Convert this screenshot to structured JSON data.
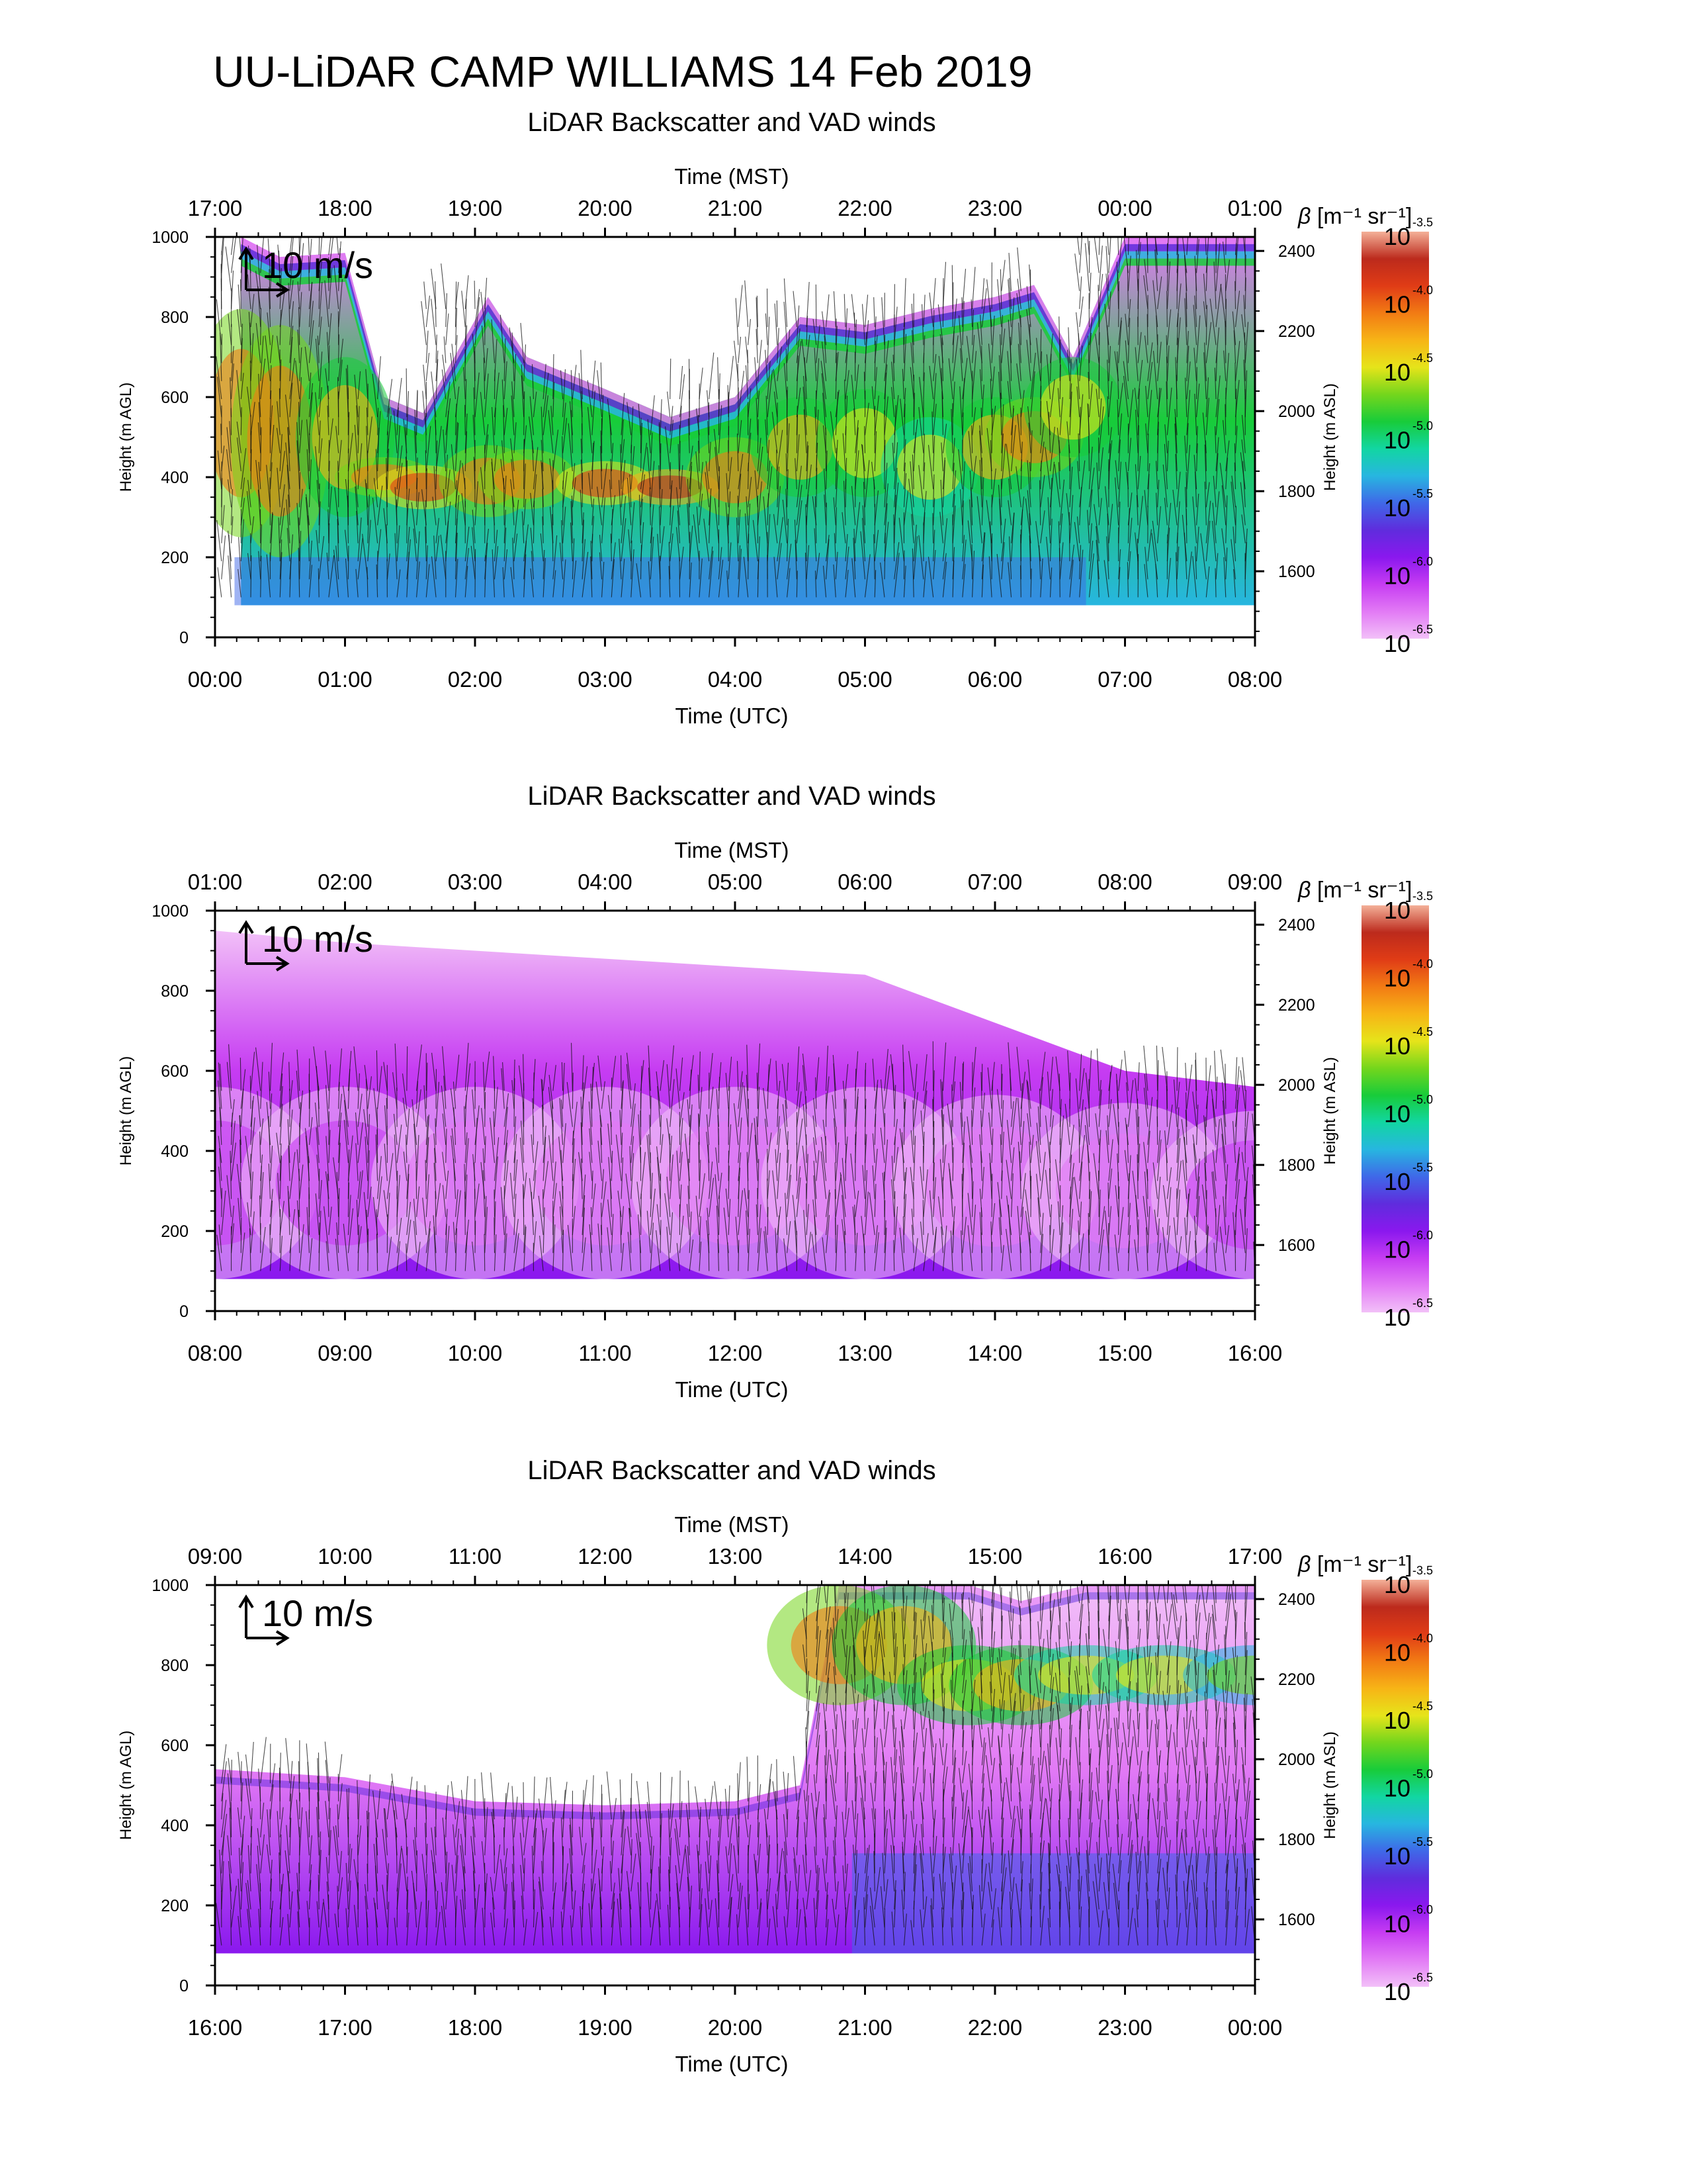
{
  "page": {
    "title": "UU-LiDAR CAMP WILLIAMS 14 Feb 2019"
  },
  "colors": {
    "colormap": [
      "#f2c0f8",
      "#e27af5",
      "#c63cf2",
      "#8a18ee",
      "#5f2cdd",
      "#3f68e8",
      "#27b6e0",
      "#12d6a2",
      "#18cc3a",
      "#74d61c",
      "#e6e41a",
      "#f7b416",
      "#f27b14",
      "#e03c16",
      "#bc2a1c",
      "#f4b098"
    ],
    "lowest": "#f2c0f8",
    "arrow": "#111111"
  },
  "chart_data": [
    {
      "type": "heatmap",
      "title": "LiDAR Backscatter and VAD winds",
      "xlabel_top": "Time (MST)",
      "xlabel_bottom": "Time (UTC)",
      "ylabel_left": "Height (m AGL)",
      "ylabel_right": "Height (m ASL)",
      "x_top_ticks": [
        "17:00",
        "18:00",
        "19:00",
        "20:00",
        "21:00",
        "22:00",
        "23:00",
        "00:00",
        "01:00"
      ],
      "x_bottom_ticks": [
        "00:00",
        "01:00",
        "02:00",
        "03:00",
        "04:00",
        "05:00",
        "06:00",
        "07:00",
        "08:00"
      ],
      "x_range_hours_utc": [
        0,
        8
      ],
      "ylim_agl": [
        0,
        1000
      ],
      "y_left_ticks": [
        "0",
        "200",
        "400",
        "600",
        "800",
        "1000"
      ],
      "y_right_ticks": [
        "1600",
        "1800",
        "2000",
        "2200",
        "2400"
      ],
      "wind_scale_label": "10 m/s",
      "colorbar": {
        "label_beta": "β",
        "label_units": "[m⁻¹ sr⁻¹]",
        "log10_levels": [
          "-3.5",
          "-4.0",
          "-4.5",
          "-5.0",
          "-5.5",
          "-6.0",
          "-6.5"
        ],
        "base": "10"
      },
      "backscatter_log10_top_layer": {
        "x_hours": [
          0.2,
          0.5,
          1.0,
          1.3,
          1.6,
          2.1,
          2.4,
          3.0,
          3.5,
          4.0,
          4.5,
          5.0,
          5.5,
          6.0,
          6.3,
          6.6,
          7.0,
          7.5,
          8.0
        ],
        "top_m": [
          1000,
          950,
          960,
          600,
          560,
          850,
          700,
          620,
          550,
          600,
          800,
          780,
          820,
          850,
          880,
          700,
          1000,
          1000,
          1000
        ],
        "core_m": [
          [
            250,
            820
          ],
          [
            200,
            780
          ],
          [
            300,
            700
          ],
          [
            350,
            450
          ],
          [
            320,
            430
          ],
          [
            300,
            480
          ],
          [
            320,
            470
          ],
          [
            330,
            440
          ],
          [
            330,
            420
          ],
          [
            300,
            500
          ],
          [
            350,
            600
          ],
          [
            350,
            620
          ],
          [
            300,
            550
          ],
          [
            350,
            600
          ],
          [
            400,
            600
          ],
          [
            450,
            700
          ],
          [
            0,
            0
          ],
          [
            0,
            0
          ],
          [
            0,
            0
          ]
        ],
        "core_log10": [
          -4.1,
          -4.1,
          -4.3,
          -4.2,
          -4.0,
          -4.2,
          -4.2,
          -3.9,
          -3.8,
          -4.2,
          -4.3,
          -4.4,
          -4.6,
          -4.3,
          -4.1,
          -4.4,
          -6.3,
          -6.4,
          -6.4
        ]
      }
    },
    {
      "type": "heatmap",
      "title": "LiDAR Backscatter and VAD winds",
      "xlabel_top": "Time (MST)",
      "xlabel_bottom": "Time (UTC)",
      "ylabel_left": "Height (m AGL)",
      "ylabel_right": "Height (m ASL)",
      "x_top_ticks": [
        "01:00",
        "02:00",
        "03:00",
        "04:00",
        "05:00",
        "06:00",
        "07:00",
        "08:00",
        "09:00"
      ],
      "x_bottom_ticks": [
        "08:00",
        "09:00",
        "10:00",
        "11:00",
        "12:00",
        "13:00",
        "14:00",
        "15:00",
        "16:00"
      ],
      "x_range_hours_utc": [
        8,
        16
      ],
      "ylim_agl": [
        0,
        1000
      ],
      "y_left_ticks": [
        "0",
        "200",
        "400",
        "600",
        "800",
        "1000"
      ],
      "y_right_ticks": [
        "1600",
        "1800",
        "2000",
        "2200",
        "2400"
      ],
      "wind_scale_label": "10 m/s",
      "colorbar": {
        "label_beta": "β",
        "label_units": "[m⁻¹ sr⁻¹]",
        "log10_levels": [
          "-3.5",
          "-4.0",
          "-4.5",
          "-5.0",
          "-5.5",
          "-6.0",
          "-6.5"
        ],
        "base": "10"
      },
      "backscatter_log10_top_layer": {
        "x_hours": [
          8.0,
          9.0,
          10.0,
          11.0,
          12.0,
          13.0,
          14.0,
          15.0,
          16.0
        ],
        "top_m": [
          950,
          920,
          900,
          880,
          860,
          840,
          720,
          600,
          560
        ],
        "core_m": [
          [
            80,
            560
          ],
          [
            80,
            560
          ],
          [
            80,
            560
          ],
          [
            80,
            560
          ],
          [
            80,
            560
          ],
          [
            80,
            560
          ],
          [
            80,
            540
          ],
          [
            80,
            520
          ],
          [
            80,
            500
          ]
        ],
        "core_log10": [
          -6.1,
          -6.1,
          -6.2,
          -6.2,
          -6.2,
          -6.2,
          -6.2,
          -6.2,
          -6.1
        ]
      }
    },
    {
      "type": "heatmap",
      "title": "LiDAR Backscatter and VAD winds",
      "xlabel_top": "Time (MST)",
      "xlabel_bottom": "Time (UTC)",
      "ylabel_left": "Height (m AGL)",
      "ylabel_right": "Height (m ASL)",
      "x_top_ticks": [
        "09:00",
        "10:00",
        "11:00",
        "12:00",
        "13:00",
        "14:00",
        "15:00",
        "16:00",
        "17:00"
      ],
      "x_bottom_ticks": [
        "16:00",
        "17:00",
        "18:00",
        "19:00",
        "20:00",
        "21:00",
        "22:00",
        "23:00",
        "00:00"
      ],
      "x_range_hours_utc": [
        16,
        24
      ],
      "ylim_agl": [
        0,
        1000
      ],
      "y_left_ticks": [
        "0",
        "200",
        "400",
        "600",
        "800",
        "1000"
      ],
      "y_right_ticks": [
        "1600",
        "1800",
        "2000",
        "2200",
        "2400"
      ],
      "wind_scale_label": "10 m/s",
      "colorbar": {
        "label_beta": "β",
        "label_units": "[m⁻¹ sr⁻¹]",
        "log10_levels": [
          "-3.5",
          "-4.0",
          "-4.5",
          "-5.0",
          "-5.5",
          "-6.0",
          "-6.5"
        ],
        "base": "10"
      },
      "backscatter_log10_top_layer": {
        "x_hours": [
          16.0,
          17.0,
          18.0,
          19.0,
          20.0,
          20.5,
          20.8,
          21.3,
          21.8,
          22.2,
          22.7,
          23.3,
          24.0
        ],
        "top_m": [
          540,
          520,
          460,
          450,
          460,
          500,
          1000,
          1000,
          1000,
          960,
          1000,
          1000,
          1000
        ],
        "core_m": [
          [
            0,
            0
          ],
          [
            0,
            0
          ],
          [
            0,
            0
          ],
          [
            0,
            0
          ],
          [
            0,
            0
          ],
          [
            0,
            0
          ],
          [
            700,
            1000
          ],
          [
            700,
            1000
          ],
          [
            650,
            850
          ],
          [
            650,
            850
          ],
          [
            700,
            850
          ],
          [
            700,
            850
          ],
          [
            700,
            850
          ]
        ],
        "core_log10": [
          -6.3,
          -6.3,
          -6.3,
          -6.3,
          -6.3,
          -6.3,
          -4.2,
          -4.3,
          -4.4,
          -4.3,
          -4.5,
          -4.6,
          -4.7
        ]
      }
    }
  ]
}
